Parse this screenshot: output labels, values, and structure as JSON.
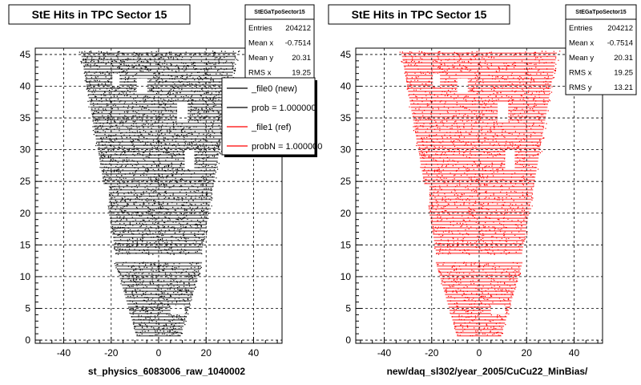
{
  "chart_data": [
    {
      "type": "scatter",
      "title": "StE Hits in TPC Sector 15",
      "xlabel": "st_physics_6083006_raw_1040002",
      "ylabel": "",
      "xlim": [
        -52,
        52
      ],
      "ylim": [
        -0.5,
        46
      ],
      "xticks": [
        -40,
        -20,
        0,
        20,
        40
      ],
      "yticks": [
        0,
        5,
        10,
        15,
        20,
        25,
        30,
        35,
        40,
        45
      ],
      "grid": true,
      "marker_color": "#000000",
      "stats": {
        "name": "StEGaTpoSector15",
        "rows": [
          {
            "label": "Entries",
            "value": "204212"
          },
          {
            "label": "Mean x",
            "value": "-0.7514"
          },
          {
            "label": "Mean y",
            "value": "20.31"
          },
          {
            "label": "RMS x",
            "value": "19.25"
          }
        ]
      },
      "legend": [
        {
          "label": "_file0 (new)",
          "color": "#000000"
        },
        {
          "label": "prob = 1.000000",
          "color": "#000000"
        },
        {
          "label": "_file1 (ref)",
          "color": "#ff0000"
        },
        {
          "label": "probN = 1.000000",
          "color": "#ff0000"
        }
      ]
    },
    {
      "type": "scatter",
      "title": "StE Hits in TPC Sector 15",
      "xlabel": "new/daq_sl302/year_2005/CuCu22_MinBias/",
      "ylabel": "",
      "xlim": [
        -52,
        52
      ],
      "ylim": [
        -0.5,
        46
      ],
      "xticks": [
        -40,
        -20,
        0,
        20,
        40
      ],
      "yticks": [
        0,
        5,
        10,
        15,
        20,
        25,
        30,
        35,
        40,
        45
      ],
      "grid": true,
      "marker_color": "#ff0000",
      "stats": {
        "name": "StEGaTpoSector15",
        "rows": [
          {
            "label": "Entries",
            "value": "204212"
          },
          {
            "label": "Mean x",
            "value": "-0.7514"
          },
          {
            "label": "Mean y",
            "value": "20.31"
          },
          {
            "label": "RMS x",
            "value": "19.25"
          },
          {
            "label": "RMS y",
            "value": "13.21"
          }
        ]
      }
    }
  ]
}
